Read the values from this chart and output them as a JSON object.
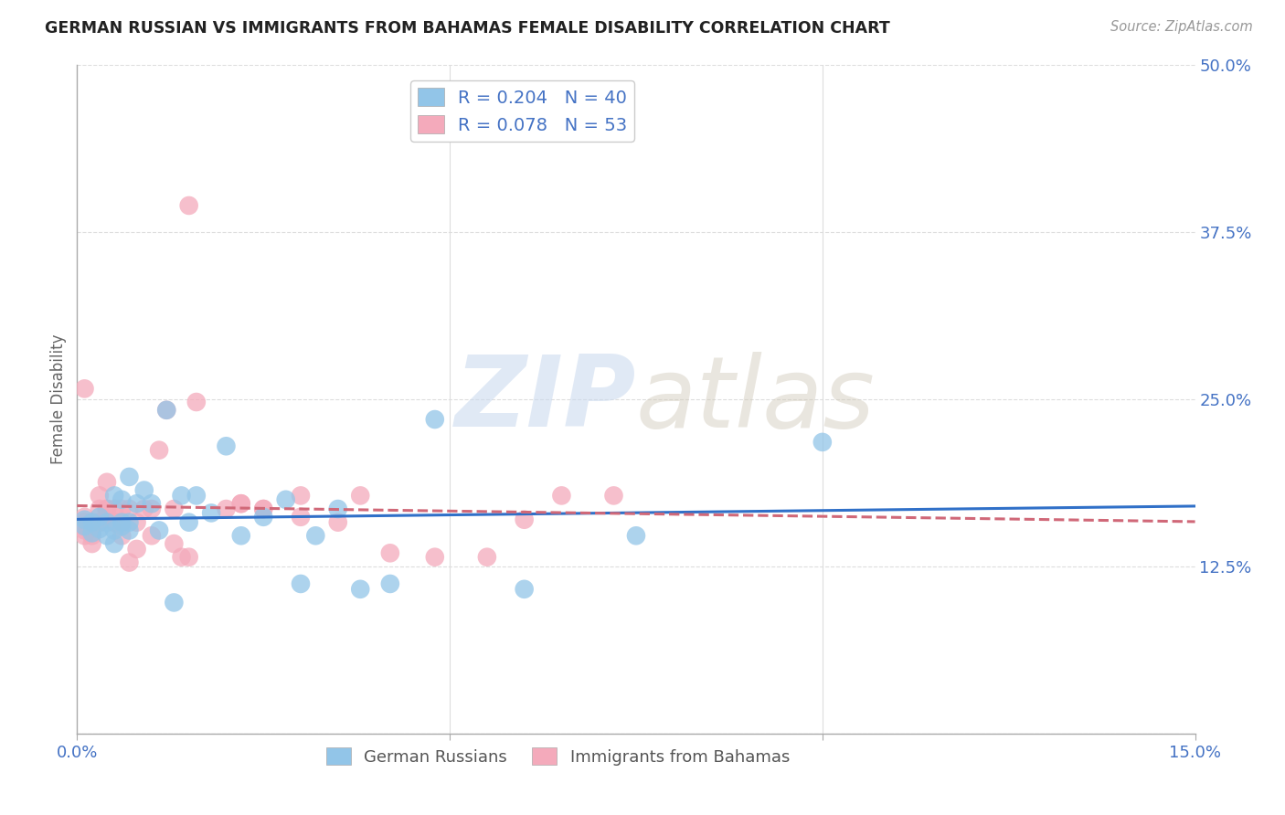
{
  "title": "GERMAN RUSSIAN VS IMMIGRANTS FROM BAHAMAS FEMALE DISABILITY CORRELATION CHART",
  "source": "Source: ZipAtlas.com",
  "ylabel": "Female Disability",
  "xlim": [
    0.0,
    0.15
  ],
  "ylim": [
    0.0,
    0.5
  ],
  "yticks": [
    0.0,
    0.125,
    0.25,
    0.375,
    0.5
  ],
  "ytick_labels": [
    "",
    "12.5%",
    "25.0%",
    "37.5%",
    "50.0%"
  ],
  "xticks": [
    0.0,
    0.05,
    0.1,
    0.15
  ],
  "xtick_labels": [
    "0.0%",
    "",
    "",
    "15.0%"
  ],
  "blue_R": 0.204,
  "blue_N": 40,
  "pink_R": 0.078,
  "pink_N": 53,
  "blue_color": "#92C5E8",
  "pink_color": "#F4AABB",
  "blue_line_color": "#3070C8",
  "pink_line_color": "#D06878",
  "background_color": "#FFFFFF",
  "watermark_zip": "ZIP",
  "watermark_atlas": "atlas",
  "legend_label_blue": "German Russians",
  "legend_label_pink": "Immigrants from Bahamas",
  "blue_x": [
    0.001,
    0.001,
    0.002,
    0.002,
    0.003,
    0.003,
    0.004,
    0.004,
    0.005,
    0.005,
    0.005,
    0.006,
    0.006,
    0.006,
    0.007,
    0.007,
    0.007,
    0.008,
    0.009,
    0.01,
    0.011,
    0.012,
    0.013,
    0.014,
    0.015,
    0.016,
    0.018,
    0.02,
    0.022,
    0.025,
    0.028,
    0.03,
    0.032,
    0.035,
    0.038,
    0.042,
    0.048,
    0.06,
    0.075,
    0.1
  ],
  "blue_y": [
    0.16,
    0.155,
    0.158,
    0.15,
    0.162,
    0.153,
    0.148,
    0.158,
    0.142,
    0.152,
    0.178,
    0.158,
    0.175,
    0.155,
    0.152,
    0.192,
    0.158,
    0.172,
    0.182,
    0.172,
    0.152,
    0.242,
    0.098,
    0.178,
    0.158,
    0.178,
    0.165,
    0.215,
    0.148,
    0.162,
    0.175,
    0.112,
    0.148,
    0.168,
    0.108,
    0.112,
    0.235,
    0.108,
    0.148,
    0.218
  ],
  "pink_x": [
    0.001,
    0.001,
    0.001,
    0.001,
    0.001,
    0.001,
    0.002,
    0.002,
    0.002,
    0.002,
    0.003,
    0.003,
    0.003,
    0.003,
    0.004,
    0.004,
    0.004,
    0.005,
    0.005,
    0.005,
    0.006,
    0.006,
    0.006,
    0.007,
    0.007,
    0.008,
    0.008,
    0.009,
    0.01,
    0.01,
    0.011,
    0.012,
    0.013,
    0.013,
    0.014,
    0.015,
    0.016,
    0.02,
    0.022,
    0.022,
    0.025,
    0.025,
    0.03,
    0.03,
    0.035,
    0.038,
    0.042,
    0.048,
    0.055,
    0.06,
    0.065,
    0.072,
    0.015
  ],
  "pink_y": [
    0.158,
    0.155,
    0.162,
    0.152,
    0.148,
    0.258,
    0.155,
    0.142,
    0.158,
    0.148,
    0.158,
    0.158,
    0.178,
    0.168,
    0.188,
    0.168,
    0.168,
    0.158,
    0.168,
    0.158,
    0.168,
    0.158,
    0.148,
    0.168,
    0.128,
    0.158,
    0.138,
    0.168,
    0.168,
    0.148,
    0.212,
    0.242,
    0.168,
    0.142,
    0.132,
    0.132,
    0.248,
    0.168,
    0.172,
    0.172,
    0.168,
    0.168,
    0.162,
    0.178,
    0.158,
    0.178,
    0.135,
    0.132,
    0.132,
    0.16,
    0.178,
    0.178,
    0.395
  ]
}
